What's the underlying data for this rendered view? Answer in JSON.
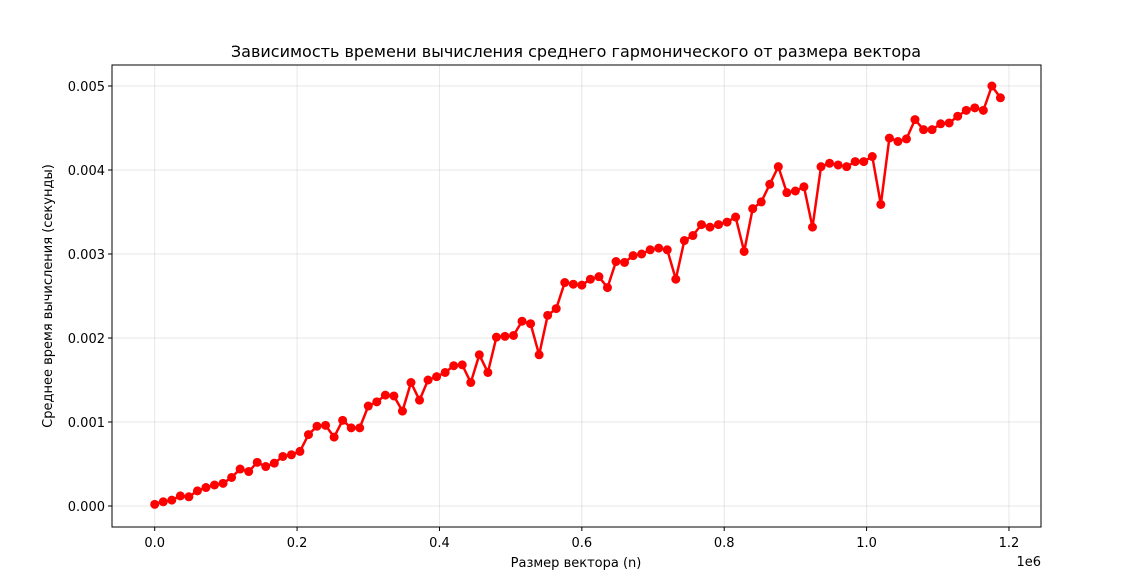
{
  "chart_data": {
    "type": "line",
    "title": "Зависимость времени вычисления среднего гармонического от размера вектора",
    "xlabel": "Размер вектора (n)",
    "ylabel": "Среднее время вычисления (секунды)",
    "x_offset_text": "1e6",
    "xlim": [
      -0.06,
      1.245
    ],
    "ylim": [
      -0.00025,
      0.00525
    ],
    "xticks": [
      0.0,
      0.2,
      0.4,
      0.6,
      0.8,
      1.0,
      1.2
    ],
    "xtick_labels": [
      "0.0",
      "0.2",
      "0.4",
      "0.6",
      "0.8",
      "1.0",
      "1.2"
    ],
    "yticks": [
      0.0,
      0.001,
      0.002,
      0.003,
      0.004,
      0.005
    ],
    "ytick_labels": [
      "0.000",
      "0.001",
      "0.002",
      "0.003",
      "0.004",
      "0.005"
    ],
    "grid": true,
    "color": "#ff0000",
    "marker": "circle",
    "x": [
      0.0,
      0.012,
      0.024,
      0.036,
      0.048,
      0.06,
      0.072,
      0.084,
      0.096,
      0.108,
      0.12,
      0.132,
      0.144,
      0.156,
      0.168,
      0.18,
      0.192,
      0.204,
      0.216,
      0.228,
      0.24,
      0.252,
      0.264,
      0.276,
      0.288,
      0.3,
      0.312,
      0.324,
      0.336,
      0.348,
      0.36,
      0.372,
      0.384,
      0.396,
      0.408,
      0.42,
      0.432,
      0.444,
      0.456,
      0.468,
      0.48,
      0.492,
      0.504,
      0.516,
      0.528,
      0.54,
      0.552,
      0.564,
      0.576,
      0.588,
      0.6,
      0.612,
      0.624,
      0.636,
      0.648,
      0.66,
      0.672,
      0.684,
      0.696,
      0.708,
      0.72,
      0.732,
      0.744,
      0.756,
      0.768,
      0.78,
      0.792,
      0.804,
      0.816,
      0.828,
      0.84,
      0.852,
      0.864,
      0.876,
      0.888,
      0.9,
      0.912,
      0.924,
      0.936,
      0.948,
      0.96,
      0.972,
      0.984,
      0.996,
      1.008,
      1.02,
      1.032,
      1.044,
      1.056,
      1.068,
      1.08,
      1.092,
      1.104,
      1.116,
      1.128,
      1.14,
      1.152,
      1.164,
      1.176,
      1.188
    ],
    "y": [
      2e-05,
      5e-05,
      7e-05,
      0.00012,
      0.00011,
      0.00018,
      0.00022,
      0.00025,
      0.00027,
      0.00034,
      0.00044,
      0.00041,
      0.00052,
      0.00047,
      0.00051,
      0.00059,
      0.00061,
      0.00065,
      0.00085,
      0.00095,
      0.00096,
      0.00082,
      0.00102,
      0.00093,
      0.00093,
      0.00119,
      0.00124,
      0.00132,
      0.00131,
      0.00113,
      0.00147,
      0.00126,
      0.0015,
      0.00154,
      0.00159,
      0.00167,
      0.00168,
      0.00147,
      0.0018,
      0.00159,
      0.00201,
      0.00202,
      0.00203,
      0.0022,
      0.00217,
      0.0018,
      0.00227,
      0.00235,
      0.00266,
      0.00264,
      0.00263,
      0.0027,
      0.00273,
      0.0026,
      0.00291,
      0.0029,
      0.00298,
      0.003,
      0.00305,
      0.00307,
      0.00305,
      0.0027,
      0.00316,
      0.00322,
      0.00335,
      0.00332,
      0.00335,
      0.00338,
      0.00344,
      0.00303,
      0.00354,
      0.00362,
      0.00383,
      0.00404,
      0.00373,
      0.00375,
      0.0038,
      0.00332,
      0.00404,
      0.00408,
      0.00406,
      0.00404,
      0.0041,
      0.0041,
      0.00416,
      0.00359,
      0.00438,
      0.00434,
      0.00437,
      0.0046,
      0.00448,
      0.00448,
      0.00455,
      0.00456,
      0.00464,
      0.00471,
      0.00474,
      0.00471,
      0.005,
      0.00486
    ]
  }
}
